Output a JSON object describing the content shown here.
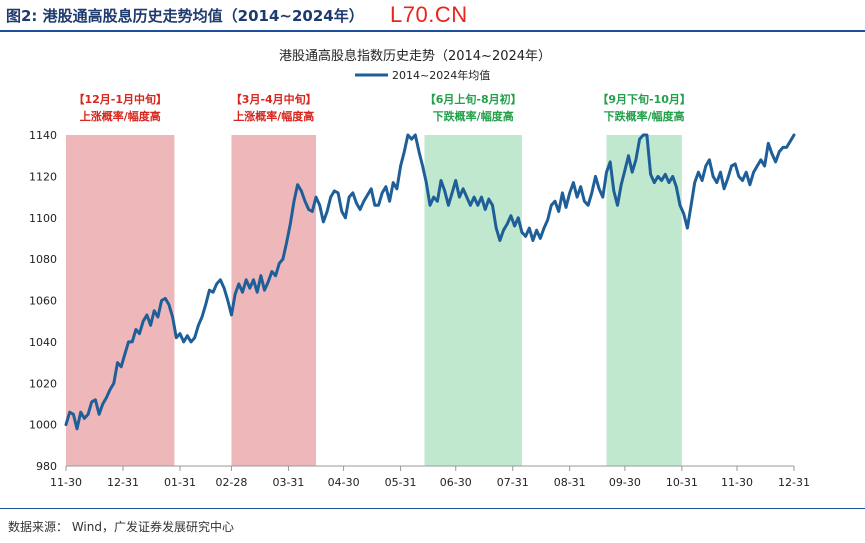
{
  "header": {
    "title": "图2:  港股通高股息历史走势均值（2014~2024年）",
    "watermark": "L70.CN"
  },
  "footer": {
    "source": "数据来源：   Wind，广发证券发展研究中心"
  },
  "colors": {
    "line": "#1f5f99",
    "up_band": "#eeb8bb",
    "down_band": "#bfe8cf",
    "up_text": "#d7261e",
    "down_text": "#22a04a",
    "axis": "#999999"
  },
  "chart_data": {
    "type": "line",
    "title": "港股通高股息指数历史走势（2014~2024年）",
    "xlabel": "",
    "ylabel": "",
    "legend": {
      "label": "2014~2024年均值",
      "position": "top-center"
    },
    "ylim": [
      980,
      1140
    ],
    "yticks": [
      980,
      1000,
      1020,
      1040,
      1060,
      1080,
      1100,
      1120,
      1140
    ],
    "xlim": [
      0,
      396
    ],
    "xticks": [
      {
        "label": "11-30",
        "x": 0
      },
      {
        "label": "12-31",
        "x": 31
      },
      {
        "label": "01-31",
        "x": 62
      },
      {
        "label": "02-28",
        "x": 90
      },
      {
        "label": "03-31",
        "x": 121
      },
      {
        "label": "04-30",
        "x": 151
      },
      {
        "label": "05-31",
        "x": 182
      },
      {
        "label": "06-30",
        "x": 212
      },
      {
        "label": "07-31",
        "x": 243
      },
      {
        "label": "08-31",
        "x": 274
      },
      {
        "label": "09-30",
        "x": 304
      },
      {
        "label": "10-31",
        "x": 335
      },
      {
        "label": "11-30",
        "x": 365
      },
      {
        "label": "12-31",
        "x": 396
      }
    ],
    "bands": [
      {
        "x0": 0,
        "x1": 59,
        "kind": "up",
        "label1": "【12月-1月中旬】",
        "label2": "上涨概率/幅度高"
      },
      {
        "x0": 90,
        "x1": 136,
        "kind": "up",
        "label1": "【3月-4月中旬】",
        "label2": "上涨概率/幅度高"
      },
      {
        "x0": 195,
        "x1": 248,
        "kind": "down",
        "label1": "【6月上旬-8月初】",
        "label2": "下跌概率/幅度高"
      },
      {
        "x0": 294,
        "x1": 335,
        "kind": "down",
        "label1": "【9月下旬-10月】",
        "label2": "下跌概率/幅度高"
      }
    ],
    "series": [
      {
        "name": "2014~2024年均值",
        "points": [
          [
            0,
            1000
          ],
          [
            2,
            1006
          ],
          [
            4,
            1005
          ],
          [
            6,
            998
          ],
          [
            8,
            1006
          ],
          [
            10,
            1003
          ],
          [
            12,
            1005
          ],
          [
            14,
            1011
          ],
          [
            16,
            1012
          ],
          [
            18,
            1005
          ],
          [
            20,
            1010
          ],
          [
            22,
            1013
          ],
          [
            24,
            1017
          ],
          [
            26,
            1020
          ],
          [
            28,
            1030
          ],
          [
            30,
            1028
          ],
          [
            32,
            1034
          ],
          [
            34,
            1040
          ],
          [
            36,
            1040
          ],
          [
            38,
            1046
          ],
          [
            40,
            1044
          ],
          [
            42,
            1050
          ],
          [
            44,
            1053
          ],
          [
            46,
            1048
          ],
          [
            48,
            1055
          ],
          [
            50,
            1052
          ],
          [
            52,
            1060
          ],
          [
            54,
            1061
          ],
          [
            56,
            1058
          ],
          [
            58,
            1052
          ],
          [
            60,
            1042
          ],
          [
            62,
            1044
          ],
          [
            64,
            1040
          ],
          [
            66,
            1043
          ],
          [
            68,
            1040
          ],
          [
            70,
            1042
          ],
          [
            72,
            1048
          ],
          [
            74,
            1052
          ],
          [
            76,
            1058
          ],
          [
            78,
            1065
          ],
          [
            80,
            1064
          ],
          [
            82,
            1068
          ],
          [
            84,
            1070
          ],
          [
            86,
            1066
          ],
          [
            88,
            1060
          ],
          [
            90,
            1053
          ],
          [
            92,
            1063
          ],
          [
            94,
            1068
          ],
          [
            96,
            1064
          ],
          [
            98,
            1070
          ],
          [
            100,
            1066
          ],
          [
            102,
            1070
          ],
          [
            104,
            1064
          ],
          [
            106,
            1072
          ],
          [
            108,
            1065
          ],
          [
            110,
            1069
          ],
          [
            112,
            1074
          ],
          [
            114,
            1072
          ],
          [
            116,
            1078
          ],
          [
            118,
            1080
          ],
          [
            120,
            1088
          ],
          [
            122,
            1097
          ],
          [
            124,
            1108
          ],
          [
            126,
            1116
          ],
          [
            128,
            1113
          ],
          [
            130,
            1108
          ],
          [
            132,
            1104
          ],
          [
            134,
            1103
          ],
          [
            136,
            1110
          ],
          [
            138,
            1106
          ],
          [
            140,
            1098
          ],
          [
            142,
            1103
          ],
          [
            144,
            1110
          ],
          [
            146,
            1113
          ],
          [
            148,
            1112
          ],
          [
            150,
            1103
          ],
          [
            152,
            1100
          ],
          [
            154,
            1110
          ],
          [
            156,
            1112
          ],
          [
            158,
            1107
          ],
          [
            160,
            1104
          ],
          [
            162,
            1108
          ],
          [
            164,
            1111
          ],
          [
            166,
            1114
          ],
          [
            168,
            1106
          ],
          [
            170,
            1106
          ],
          [
            172,
            1112
          ],
          [
            174,
            1115
          ],
          [
            176,
            1108
          ],
          [
            178,
            1117
          ],
          [
            180,
            1114
          ],
          [
            182,
            1125
          ],
          [
            184,
            1132
          ],
          [
            186,
            1140
          ],
          [
            188,
            1138
          ],
          [
            190,
            1140
          ],
          [
            192,
            1132
          ],
          [
            194,
            1125
          ],
          [
            196,
            1117
          ],
          [
            198,
            1106
          ],
          [
            200,
            1110
          ],
          [
            202,
            1108
          ],
          [
            204,
            1118
          ],
          [
            206,
            1113
          ],
          [
            208,
            1106
          ],
          [
            210,
            1112
          ],
          [
            212,
            1118
          ],
          [
            214,
            1110
          ],
          [
            216,
            1114
          ],
          [
            218,
            1110
          ],
          [
            220,
            1106
          ],
          [
            222,
            1110
          ],
          [
            224,
            1106
          ],
          [
            226,
            1110
          ],
          [
            228,
            1104
          ],
          [
            230,
            1109
          ],
          [
            232,
            1106
          ],
          [
            234,
            1095
          ],
          [
            236,
            1089
          ],
          [
            238,
            1094
          ],
          [
            240,
            1097
          ],
          [
            242,
            1101
          ],
          [
            244,
            1096
          ],
          [
            246,
            1100
          ],
          [
            248,
            1093
          ],
          [
            250,
            1091
          ],
          [
            252,
            1095
          ],
          [
            254,
            1089
          ],
          [
            256,
            1094
          ],
          [
            258,
            1090
          ],
          [
            260,
            1095
          ],
          [
            262,
            1099
          ],
          [
            264,
            1106
          ],
          [
            266,
            1108
          ],
          [
            268,
            1103
          ],
          [
            270,
            1112
          ],
          [
            272,
            1105
          ],
          [
            274,
            1112
          ],
          [
            276,
            1117
          ],
          [
            278,
            1110
          ],
          [
            280,
            1115
          ],
          [
            282,
            1108
          ],
          [
            284,
            1106
          ],
          [
            286,
            1112
          ],
          [
            288,
            1120
          ],
          [
            290,
            1114
          ],
          [
            292,
            1110
          ],
          [
            294,
            1122
          ],
          [
            296,
            1127
          ],
          [
            298,
            1113
          ],
          [
            300,
            1106
          ],
          [
            302,
            1116
          ],
          [
            304,
            1123
          ],
          [
            306,
            1130
          ],
          [
            308,
            1122
          ],
          [
            310,
            1128
          ],
          [
            312,
            1138
          ],
          [
            314,
            1140
          ],
          [
            316,
            1140
          ],
          [
            318,
            1121
          ],
          [
            320,
            1117
          ],
          [
            322,
            1120
          ],
          [
            324,
            1118
          ],
          [
            326,
            1121
          ],
          [
            328,
            1117
          ],
          [
            330,
            1120
          ],
          [
            332,
            1115
          ],
          [
            334,
            1106
          ],
          [
            336,
            1102
          ],
          [
            338,
            1095
          ],
          [
            340,
            1106
          ],
          [
            342,
            1117
          ],
          [
            344,
            1122
          ],
          [
            346,
            1118
          ],
          [
            348,
            1125
          ],
          [
            350,
            1128
          ],
          [
            352,
            1120
          ],
          [
            354,
            1117
          ],
          [
            356,
            1122
          ],
          [
            358,
            1114
          ],
          [
            360,
            1119
          ],
          [
            362,
            1125
          ],
          [
            364,
            1126
          ],
          [
            366,
            1120
          ],
          [
            368,
            1118
          ],
          [
            370,
            1122
          ],
          [
            372,
            1116
          ],
          [
            374,
            1122
          ],
          [
            376,
            1125
          ],
          [
            378,
            1128
          ],
          [
            380,
            1125
          ],
          [
            382,
            1136
          ],
          [
            384,
            1131
          ],
          [
            386,
            1127
          ],
          [
            388,
            1132
          ],
          [
            390,
            1134
          ],
          [
            392,
            1134
          ],
          [
            394,
            1137
          ],
          [
            396,
            1140
          ]
        ]
      }
    ]
  }
}
